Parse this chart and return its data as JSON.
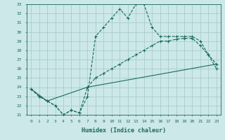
{
  "xlabel": "Humidex (Indice chaleur)",
  "bg_color": "#cce8e8",
  "grid_color": "#aacccc",
  "line_color": "#1a6b5a",
  "xlim": [
    -0.5,
    23.5
  ],
  "ylim": [
    21,
    33
  ],
  "xticks": [
    0,
    1,
    2,
    3,
    4,
    5,
    6,
    7,
    8,
    9,
    10,
    11,
    12,
    13,
    14,
    15,
    16,
    17,
    18,
    19,
    20,
    21,
    22,
    23
  ],
  "yticks": [
    21,
    22,
    23,
    24,
    25,
    26,
    27,
    28,
    29,
    30,
    31,
    32,
    33
  ],
  "series1_x": [
    0,
    1,
    2,
    3,
    4,
    5,
    6,
    7,
    8,
    9,
    10,
    11,
    12,
    13,
    14,
    15,
    16,
    17,
    18,
    19,
    20,
    21,
    22,
    23
  ],
  "series1_y": [
    23.8,
    23.0,
    22.5,
    22.0,
    21.0,
    21.5,
    21.2,
    23.0,
    29.5,
    30.5,
    31.5,
    32.5,
    31.5,
    33.0,
    33.0,
    30.5,
    29.5,
    29.5,
    29.5,
    29.5,
    29.5,
    29.0,
    27.5,
    26.0
  ],
  "series2_x": [
    0,
    1,
    2,
    3,
    4,
    5,
    6,
    7,
    8,
    9,
    10,
    11,
    12,
    13,
    14,
    15,
    16,
    17,
    18,
    19,
    20,
    21,
    22,
    23
  ],
  "series2_y": [
    23.8,
    23.0,
    22.5,
    22.0,
    21.0,
    21.5,
    21.2,
    24.0,
    25.0,
    25.5,
    26.0,
    26.5,
    27.0,
    27.5,
    28.0,
    28.5,
    29.0,
    29.0,
    29.2,
    29.3,
    29.3,
    28.5,
    27.5,
    26.5
  ],
  "series3_x": [
    0,
    2,
    7,
    23
  ],
  "series3_y": [
    23.8,
    22.5,
    24.0,
    26.5
  ]
}
